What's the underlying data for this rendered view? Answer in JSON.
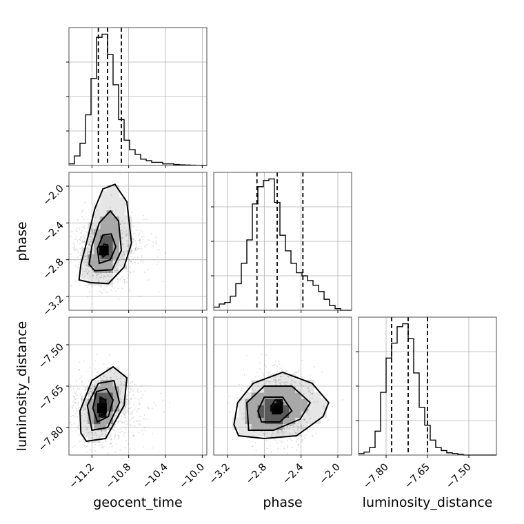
{
  "chart_data": {
    "type": "corner",
    "parameters": [
      "geocent_time",
      "phase",
      "luminosity_distance"
    ],
    "axis_labels": {
      "geocent_time": "geocent_time",
      "phase": "phase",
      "luminosity_distance": "luminosity_distance"
    },
    "ranges": {
      "geocent_time": [
        -11.45,
        -9.95
      ],
      "phase": [
        -3.35,
        -1.85
      ],
      "luminosity_distance": [
        -7.9,
        -7.4
      ]
    },
    "ticks": {
      "geocent_time": [
        "−11.2",
        "−10.8",
        "−10.4",
        "−10.0"
      ],
      "phase": [
        "−3.2",
        "−2.8",
        "−2.4",
        "−2.0"
      ],
      "luminosity_distance": [
        "−7.80",
        "−7.65",
        "−7.50"
      ]
    },
    "tick_values": {
      "geocent_time": [
        -11.2,
        -10.8,
        -10.4,
        -10.0
      ],
      "phase": [
        -3.2,
        -2.8,
        -2.4,
        -2.0
      ],
      "luminosity_distance": [
        -7.8,
        -7.65,
        -7.5
      ]
    },
    "quantiles": {
      "geocent_time": [
        -11.13,
        -11.03,
        -10.88
      ],
      "phase": [
        -2.88,
        -2.66,
        -2.38
      ],
      "luminosity_distance": [
        -7.78,
        -7.72,
        -7.65
      ]
    },
    "histograms": {
      "geocent_time": {
        "edges": [
          -11.45,
          -11.39,
          -11.33,
          -11.27,
          -11.21,
          -11.15,
          -11.09,
          -11.03,
          -10.97,
          -10.91,
          -10.85,
          -10.79,
          -10.73,
          -10.67,
          -10.61,
          -10.55,
          -10.49,
          -10.43,
          -10.37,
          -10.31,
          -10.25,
          -10.19,
          -10.13,
          -10.07,
          -10.01,
          -9.95
        ],
        "counts": [
          1,
          6,
          14,
          32,
          55,
          81,
          83,
          70,
          51,
          29,
          16,
          10,
          7,
          4,
          3,
          2,
          2,
          1,
          1,
          0.6,
          0.4,
          0.3,
          0.2,
          0.1,
          0
        ]
      },
      "phase": {
        "edges": [
          -3.35,
          -3.29,
          -3.23,
          -3.17,
          -3.11,
          -3.05,
          -2.99,
          -2.93,
          -2.87,
          -2.81,
          -2.75,
          -2.69,
          -2.63,
          -2.57,
          -2.51,
          -2.45,
          -2.39,
          -2.33,
          -2.27,
          -2.21,
          -2.15,
          -2.09,
          -2.03,
          -1.97,
          -1.91,
          -1.85
        ],
        "counts": [
          2,
          4,
          5,
          9,
          17,
          30,
          45,
          68,
          79,
          83,
          84,
          69,
          48,
          38,
          30,
          24,
          22,
          19,
          16,
          12,
          7,
          3,
          1,
          0,
          0
        ]
      },
      "luminosity_distance": {
        "edges": [
          -7.9,
          -7.88,
          -7.86,
          -7.84,
          -7.82,
          -7.8,
          -7.78,
          -7.76,
          -7.74,
          -7.72,
          -7.7,
          -7.68,
          -7.66,
          -7.64,
          -7.62,
          -7.6,
          -7.58,
          -7.56,
          -7.54,
          -7.52,
          -7.5,
          -7.48,
          -7.46,
          -7.44,
          -7.42,
          -7.4
        ],
        "counts": [
          1,
          2,
          5,
          16,
          42,
          65,
          75,
          86,
          88,
          78,
          55,
          32,
          20,
          10,
          5,
          3,
          1.5,
          1,
          0.5,
          0,
          0,
          0,
          0,
          0,
          0
        ]
      }
    },
    "pairs": [
      {
        "x": "geocent_time",
        "y": "phase",
        "peak": [
          -11.07,
          -2.7
        ],
        "contours": [
          [
            [
              -11.21,
              -3.05
            ],
            [
              -11.02,
              -3.06
            ],
            [
              -10.85,
              -2.88
            ],
            [
              -10.77,
              -2.62
            ],
            [
              -10.82,
              -2.17
            ],
            [
              -10.95,
              -1.98
            ],
            [
              -11.08,
              -2.03
            ],
            [
              -11.17,
              -2.25
            ],
            [
              -11.25,
              -2.58
            ],
            [
              -11.32,
              -2.85
            ],
            [
              -11.34,
              -3.02
            ]
          ],
          [
            [
              -11.17,
              -2.92
            ],
            [
              -10.98,
              -2.91
            ],
            [
              -10.88,
              -2.7
            ],
            [
              -10.91,
              -2.38
            ],
            [
              -11.0,
              -2.27
            ],
            [
              -11.12,
              -2.4
            ],
            [
              -11.2,
              -2.65
            ],
            [
              -11.23,
              -2.85
            ]
          ],
          [
            [
              -11.12,
              -2.84
            ],
            [
              -11.0,
              -2.8
            ],
            [
              -10.94,
              -2.66
            ],
            [
              -10.99,
              -2.52
            ],
            [
              -11.08,
              -2.53
            ],
            [
              -11.14,
              -2.68
            ]
          ],
          [
            [
              -11.08,
              -2.77
            ],
            [
              -11.04,
              -2.74
            ],
            [
              -11.03,
              -2.64
            ],
            [
              -11.07,
              -2.63
            ],
            [
              -11.1,
              -2.71
            ]
          ]
        ]
      },
      {
        "x": "geocent_time",
        "y": "luminosity_distance",
        "peak": [
          -11.09,
          -7.73
        ],
        "contours": [
          [
            [
              -11.26,
              -7.85
            ],
            [
              -11.05,
              -7.84
            ],
            [
              -10.85,
              -7.72
            ],
            [
              -10.82,
              -7.62
            ],
            [
              -10.97,
              -7.58
            ],
            [
              -11.2,
              -7.63
            ],
            [
              -11.33,
              -7.74
            ],
            [
              -11.32,
              -7.82
            ]
          ],
          [
            [
              -11.2,
              -7.81
            ],
            [
              -11.03,
              -7.8
            ],
            [
              -10.9,
              -7.71
            ],
            [
              -10.96,
              -7.63
            ],
            [
              -11.13,
              -7.64
            ],
            [
              -11.25,
              -7.72
            ]
          ],
          [
            [
              -11.14,
              -7.78
            ],
            [
              -11.02,
              -7.76
            ],
            [
              -10.97,
              -7.7
            ],
            [
              -11.04,
              -7.66
            ],
            [
              -11.15,
              -7.67
            ],
            [
              -11.19,
              -7.73
            ]
          ],
          [
            [
              -11.12,
              -7.76
            ],
            [
              -11.06,
              -7.75
            ],
            [
              -11.05,
              -7.7
            ],
            [
              -11.11,
              -7.69
            ]
          ]
        ]
      },
      {
        "x": "phase",
        "y": "luminosity_distance",
        "peak": [
          -2.65,
          -7.73
        ],
        "contours": [
          [
            [
              -3.08,
              -7.83
            ],
            [
              -2.8,
              -7.84
            ],
            [
              -2.45,
              -7.83
            ],
            [
              -2.16,
              -7.76
            ],
            [
              -2.1,
              -7.71
            ],
            [
              -2.28,
              -7.64
            ],
            [
              -2.6,
              -7.6
            ],
            [
              -2.92,
              -7.64
            ],
            [
              -3.09,
              -7.71
            ],
            [
              -3.13,
              -7.79
            ]
          ],
          [
            [
              -2.97,
              -7.81
            ],
            [
              -2.7,
              -7.81
            ],
            [
              -2.41,
              -7.77
            ],
            [
              -2.3,
              -7.71
            ],
            [
              -2.5,
              -7.65
            ],
            [
              -2.8,
              -7.65
            ],
            [
              -2.99,
              -7.71
            ]
          ],
          [
            [
              -2.83,
              -7.78
            ],
            [
              -2.63,
              -7.78
            ],
            [
              -2.5,
              -7.74
            ],
            [
              -2.6,
              -7.69
            ],
            [
              -2.8,
              -7.69
            ],
            [
              -2.87,
              -7.74
            ]
          ],
          [
            [
              -2.71,
              -7.75
            ],
            [
              -2.62,
              -7.75
            ],
            [
              -2.6,
              -7.71
            ],
            [
              -2.68,
              -7.7
            ],
            [
              -2.72,
              -7.72
            ]
          ]
        ]
      }
    ]
  }
}
